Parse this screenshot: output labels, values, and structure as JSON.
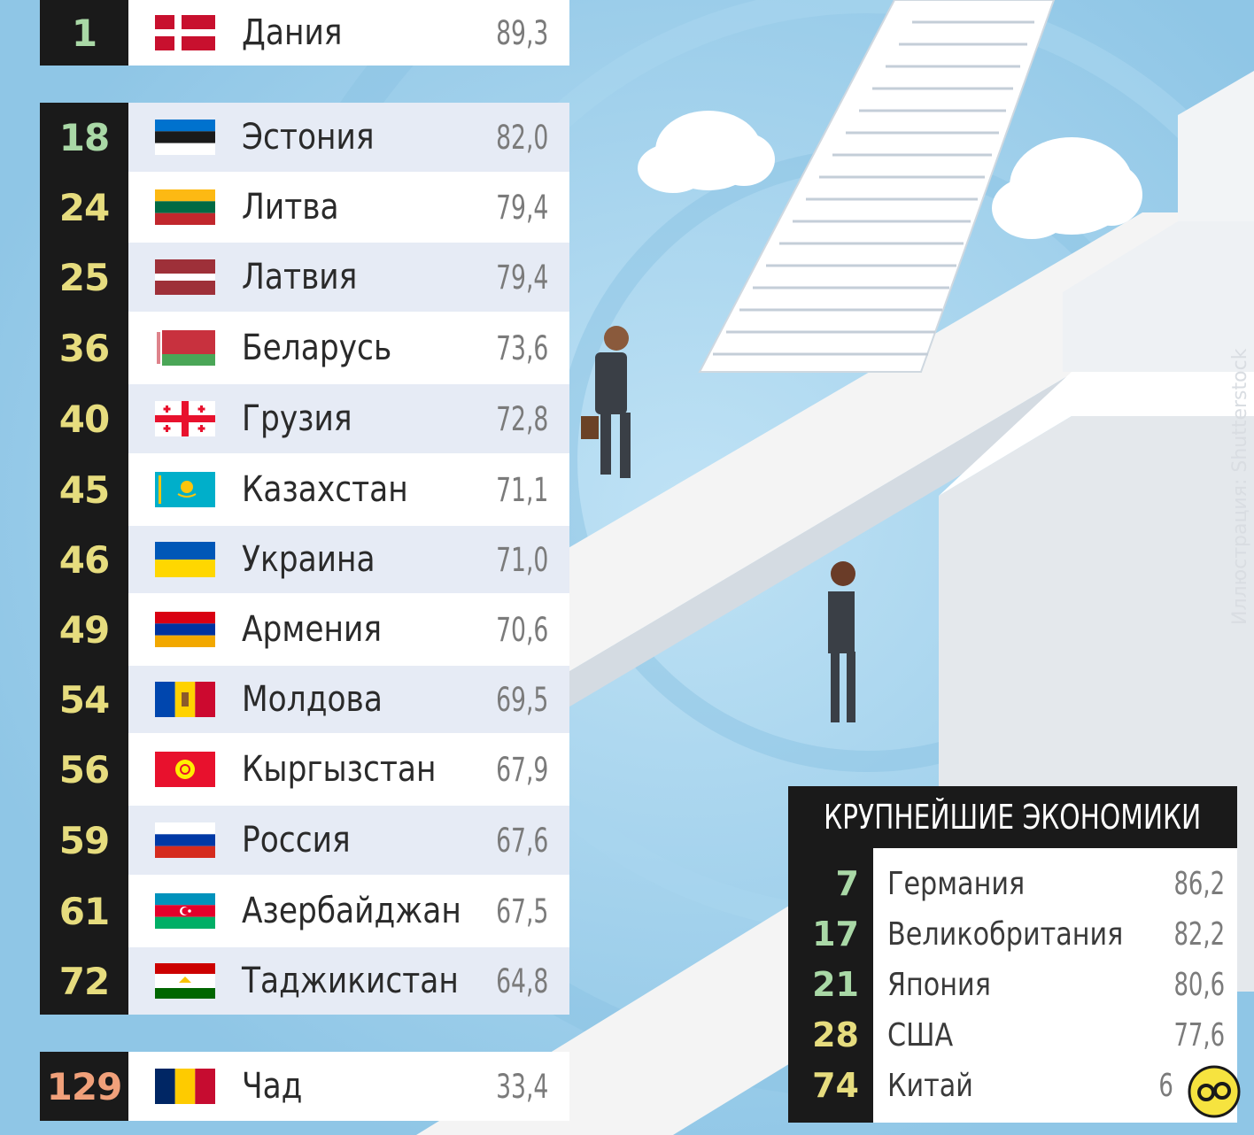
{
  "colors": {
    "sky": "#9cd0ec",
    "rank_bg": "#1a1a1a",
    "rank_green": "#a9d8a6",
    "rank_yellow": "#e6dc7e",
    "rank_orange": "#f0a07a"
  },
  "ranking": [
    {
      "rank": "1",
      "country": "Дания",
      "score": "89,3",
      "flag": "flag-denmark",
      "rank_color": "green"
    },
    {
      "rank": "18",
      "country": "Эстония",
      "score": "82,0",
      "flag": "flag-estonia",
      "rank_color": "green"
    },
    {
      "rank": "24",
      "country": "Литва",
      "score": "79,4",
      "flag": "flag-lithuania",
      "rank_color": "yellow"
    },
    {
      "rank": "25",
      "country": "Латвия",
      "score": "79,4",
      "flag": "flag-latvia",
      "rank_color": "yellow"
    },
    {
      "rank": "36",
      "country": "Беларусь",
      "score": "73,6",
      "flag": "flag-belarus",
      "rank_color": "yellow"
    },
    {
      "rank": "40",
      "country": "Грузия",
      "score": "72,8",
      "flag": "flag-georgia",
      "rank_color": "yellow"
    },
    {
      "rank": "45",
      "country": "Казахстан",
      "score": "71,1",
      "flag": "flag-kazakhstan",
      "rank_color": "yellow"
    },
    {
      "rank": "46",
      "country": "Украина",
      "score": "71,0",
      "flag": "flag-ukraine",
      "rank_color": "yellow"
    },
    {
      "rank": "49",
      "country": "Армения",
      "score": "70,6",
      "flag": "flag-armenia",
      "rank_color": "yellow"
    },
    {
      "rank": "54",
      "country": "Молдова",
      "score": "69,5",
      "flag": "flag-moldova",
      "rank_color": "yellow"
    },
    {
      "rank": "56",
      "country": "Кыргызстан",
      "score": "67,9",
      "flag": "flag-kyrgyzstan",
      "rank_color": "yellow"
    },
    {
      "rank": "59",
      "country": "Россия",
      "score": "67,6",
      "flag": "flag-russia",
      "rank_color": "yellow"
    },
    {
      "rank": "61",
      "country": "Азербайджан",
      "score": "67,5",
      "flag": "flag-azerbaijan",
      "rank_color": "yellow"
    },
    {
      "rank": "72",
      "country": "Таджикистан",
      "score": "64,8",
      "flag": "flag-tajikistan",
      "rank_color": "yellow"
    },
    {
      "rank": "129",
      "country": "Чад",
      "score": "33,4",
      "flag": "flag-chad",
      "rank_color": "orange"
    }
  ],
  "largest_economies": {
    "title": "КРУПНЕЙШИЕ ЭКОНОМИКИ",
    "rows": [
      {
        "rank": "7",
        "country": "Германия",
        "score": "86,2",
        "rank_color": "green"
      },
      {
        "rank": "17",
        "country": "Великобритания",
        "score": "82,2",
        "rank_color": "green"
      },
      {
        "rank": "21",
        "country": "Япония",
        "score": "80,6",
        "rank_color": "green"
      },
      {
        "rank": "28",
        "country": "США",
        "score": "77,6",
        "rank_color": "yellow"
      },
      {
        "rank": "74",
        "country": "Китай",
        "score": "6",
        "rank_color": "yellow"
      }
    ]
  },
  "credit": "Иллюстрация: Shutterstock"
}
